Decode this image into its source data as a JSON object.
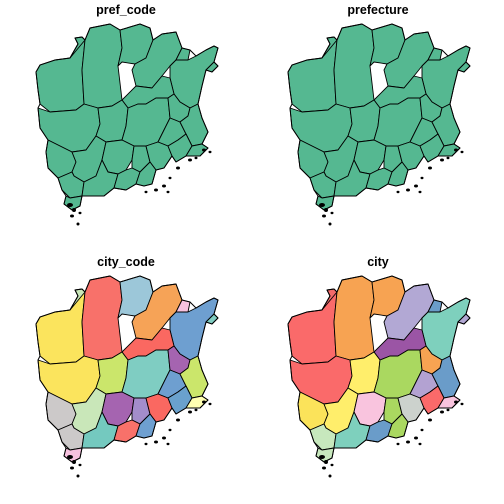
{
  "panels": [
    {
      "title": "pref_code"
    },
    {
      "title": "prefecture"
    },
    {
      "title": "city_code"
    },
    {
      "title": "city"
    }
  ],
  "colors": {
    "uniform_fill": "#55b891",
    "city_code_palette": [
      "#f8716a",
      "#fbe45d",
      "#c9e7b9",
      "#9cc7d9",
      "#f6a357",
      "#6e9fd0",
      "#7fcdc2",
      "#a38dcb",
      "#ccc9c9",
      "#f7c2df",
      "#cbe66b",
      "#ffffb2",
      "#fa6861",
      "#a564b0",
      "#74c9bf",
      "#6aa1cd"
    ],
    "city_palette": [
      "#fa6a6a",
      "#f7a352",
      "#b2a8d4",
      "#7ed0bd",
      "#ffee6b",
      "#6a9cc9",
      "#aad860",
      "#f9c4de",
      "#ccd2cd",
      "#c7e8bd",
      "#fbe35a",
      "#ffff9e",
      "#7cc3d8",
      "#b3a2d2",
      "#f36b6a",
      "#9b55a5"
    ]
  }
}
